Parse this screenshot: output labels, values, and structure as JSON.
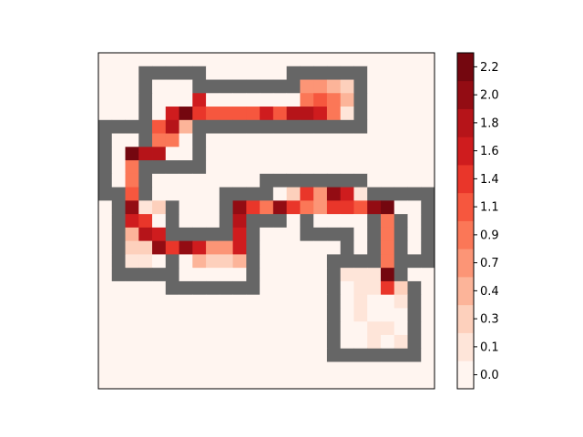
{
  "chart_data": {
    "type": "heatmap",
    "title": "",
    "xlabel": "",
    "ylabel": "",
    "colormap": "Reds (discrete)",
    "wall_color": "#666666",
    "wall_value": "wall",
    "grid_size": [
      25,
      25
    ],
    "colorbar": {
      "tick_labels": [
        "0.0",
        "0.1",
        "0.3",
        "0.4",
        "0.7",
        "0.9",
        "1.1",
        "1.4",
        "1.6",
        "1.8",
        "2.0",
        "2.2"
      ],
      "colors": [
        "#fff5f0",
        "#fee5d9",
        "#fdd0bc",
        "#fcb499",
        "#fc9576",
        "#fb7757",
        "#f6573e",
        "#e9362a",
        "#cf1c1e",
        "#b61419",
        "#930c13",
        "#74070f"
      ],
      "range": [
        0.0,
        2.3
      ]
    },
    "grid": [
      [
        0,
        0,
        0,
        0,
        0,
        0,
        0,
        0,
        0,
        0,
        0,
        0,
        0,
        0,
        0,
        0,
        0,
        0,
        0,
        0,
        0,
        0,
        0,
        0,
        0
      ],
      [
        0,
        0,
        0,
        "W",
        "W",
        "W",
        "W",
        "W",
        0,
        0,
        0,
        0,
        0,
        0,
        "W",
        "W",
        "W",
        "W",
        "W",
        "W",
        0,
        0,
        0,
        0,
        0
      ],
      [
        0,
        0,
        0,
        "W",
        0,
        0,
        0,
        "W",
        "W",
        "W",
        "W",
        "W",
        "W",
        "W",
        "W",
        0.8,
        0.8,
        0.7,
        0.4,
        "W",
        0,
        0,
        0,
        0,
        0
      ],
      [
        0,
        0,
        0,
        "W",
        0,
        0,
        0,
        1.6,
        0,
        0,
        0.1,
        0.1,
        0.1,
        0.1,
        0,
        1.0,
        1.2,
        1.0,
        0.7,
        "W",
        0,
        0,
        0,
        0,
        0
      ],
      [
        0,
        0,
        0,
        "W",
        0,
        1.7,
        2.2,
        1.5,
        1.2,
        1.2,
        1.2,
        1.2,
        1.7,
        1.3,
        1.9,
        1.8,
        1.6,
        1.0,
        0.3,
        "W",
        0,
        0,
        0,
        0,
        0
      ],
      [
        "W",
        "W",
        "W",
        "W",
        1.3,
        1.8,
        0.7,
        "W",
        "W",
        "W",
        "W",
        "W",
        "W",
        "W",
        "W",
        "W",
        "W",
        "W",
        "W",
        "W",
        0,
        0,
        0,
        0,
        0
      ],
      [
        "W",
        0,
        0,
        "W",
        1.0,
        1.1,
        0,
        "W",
        0,
        0,
        0,
        0,
        0,
        0,
        0,
        0,
        0,
        0,
        0,
        0,
        0,
        0,
        0,
        0,
        0
      ],
      [
        "W",
        0,
        2.3,
        1.8,
        1.9,
        0.1,
        0,
        "W",
        0,
        0,
        0,
        0,
        0,
        0,
        0,
        0,
        0,
        0,
        0,
        0,
        0,
        0,
        0,
        0,
        0
      ],
      [
        "W",
        0,
        1.1,
        "W",
        "W",
        "W",
        "W",
        "W",
        0,
        0,
        0,
        0,
        0,
        0,
        0,
        0,
        0,
        0,
        0,
        0,
        0,
        0,
        0,
        0,
        0
      ],
      [
        "W",
        0,
        1.1,
        "W",
        0,
        0,
        0,
        0,
        0,
        0,
        0,
        0,
        "W",
        "W",
        "W",
        "W",
        "W",
        "W",
        "W",
        "W",
        0,
        0,
        0,
        0,
        0
      ],
      [
        "W",
        "W",
        1.2,
        "W",
        0,
        0,
        0,
        0,
        0,
        "W",
        "W",
        "W",
        "W",
        0,
        0.5,
        1.5,
        0.9,
        2.0,
        1.7,
        0.2,
        "W",
        "W",
        "W",
        "W",
        "W"
      ],
      [
        0,
        "W",
        2.1,
        0.2,
        0.4,
        "W",
        0,
        0,
        0,
        "W",
        2.0,
        1.4,
        1.1,
        2.1,
        1.5,
        1.1,
        0.8,
        1.5,
        1.5,
        1.3,
        2.0,
        2.3,
        0,
        0,
        "W"
      ],
      [
        0,
        "W",
        1.7,
        1.5,
        0.1,
        "W",
        0,
        0,
        0,
        "W",
        1.9,
        "W",
        "W",
        "W",
        0,
        "W",
        0,
        0,
        0,
        0,
        "W",
        1.1,
        "W",
        0,
        "W"
      ],
      [
        0,
        "W",
        0.6,
        1.8,
        1.6,
        "W",
        "W",
        "W",
        "W",
        "W",
        1.6,
        "W",
        0,
        0,
        0,
        "W",
        "W",
        "W",
        "W",
        0,
        "W",
        1.1,
        "W",
        0,
        "W"
      ],
      [
        0,
        "W",
        0.5,
        0.4,
        2.1,
        1.4,
        2.0,
        1.6,
        0.8,
        0.8,
        1.6,
        "W",
        0,
        0,
        0,
        0,
        0,
        0,
        "W",
        0,
        "W",
        1.1,
        "W",
        0,
        "W"
      ],
      [
        0,
        "W",
        0.2,
        0.2,
        0,
        "W",
        0,
        0.7,
        0.4,
        0.4,
        0.6,
        "W",
        0,
        0,
        0,
        0,
        0,
        "W",
        "W",
        "W",
        "W",
        1.1,
        "W",
        "W",
        "W"
      ],
      [
        0,
        "W",
        "W",
        "W",
        "W",
        "W",
        0,
        0,
        0,
        0,
        0,
        "W",
        0,
        0,
        0,
        0,
        0,
        "W",
        0.3,
        0.3,
        0.3,
        2.2,
        "W",
        0,
        0
      ],
      [
        0,
        0,
        0,
        0,
        0,
        "W",
        "W",
        "W",
        "W",
        "W",
        "W",
        "W",
        0,
        0,
        0,
        0,
        0,
        "W",
        0.1,
        0.3,
        0.2,
        1.4,
        0.5,
        "W",
        0
      ],
      [
        0,
        0,
        0,
        0,
        0,
        0,
        0,
        0,
        0,
        0,
        0,
        0,
        0,
        0,
        0,
        0,
        0,
        "W",
        0.1,
        0.2,
        0.1,
        0.1,
        0.2,
        "W",
        0
      ],
      [
        0,
        0,
        0,
        0,
        0,
        0,
        0,
        0,
        0,
        0,
        0,
        0,
        0,
        0,
        0,
        0,
        0,
        "W",
        0.1,
        0.2,
        0.1,
        0.1,
        0.1,
        "W",
        0
      ],
      [
        0,
        0,
        0,
        0,
        0,
        0,
        0,
        0,
        0,
        0,
        0,
        0,
        0,
        0,
        0,
        0,
        0,
        "W",
        0.1,
        0.1,
        0.2,
        0.2,
        0.1,
        "W",
        0
      ],
      [
        0,
        0,
        0,
        0,
        0,
        0,
        0,
        0,
        0,
        0,
        0,
        0,
        0,
        0,
        0,
        0,
        0,
        "W",
        0.1,
        0.1,
        0.2,
        0.1,
        0.2,
        "W",
        0
      ],
      [
        0,
        0,
        0,
        0,
        0,
        0,
        0,
        0,
        0,
        0,
        0,
        0,
        0,
        0,
        0,
        0,
        0,
        "W",
        "W",
        "W",
        "W",
        "W",
        "W",
        "W",
        0
      ],
      [
        0,
        0,
        0,
        0,
        0,
        0,
        0,
        0,
        0,
        0,
        0,
        0,
        0,
        0,
        0,
        0,
        0,
        0,
        0,
        0,
        0,
        0,
        0,
        0,
        0
      ],
      [
        0,
        0,
        0,
        0,
        0,
        0,
        0,
        0,
        0,
        0,
        0,
        0,
        0,
        0,
        0,
        0,
        0,
        0,
        0,
        0,
        0,
        0,
        0,
        0,
        0
      ]
    ]
  }
}
